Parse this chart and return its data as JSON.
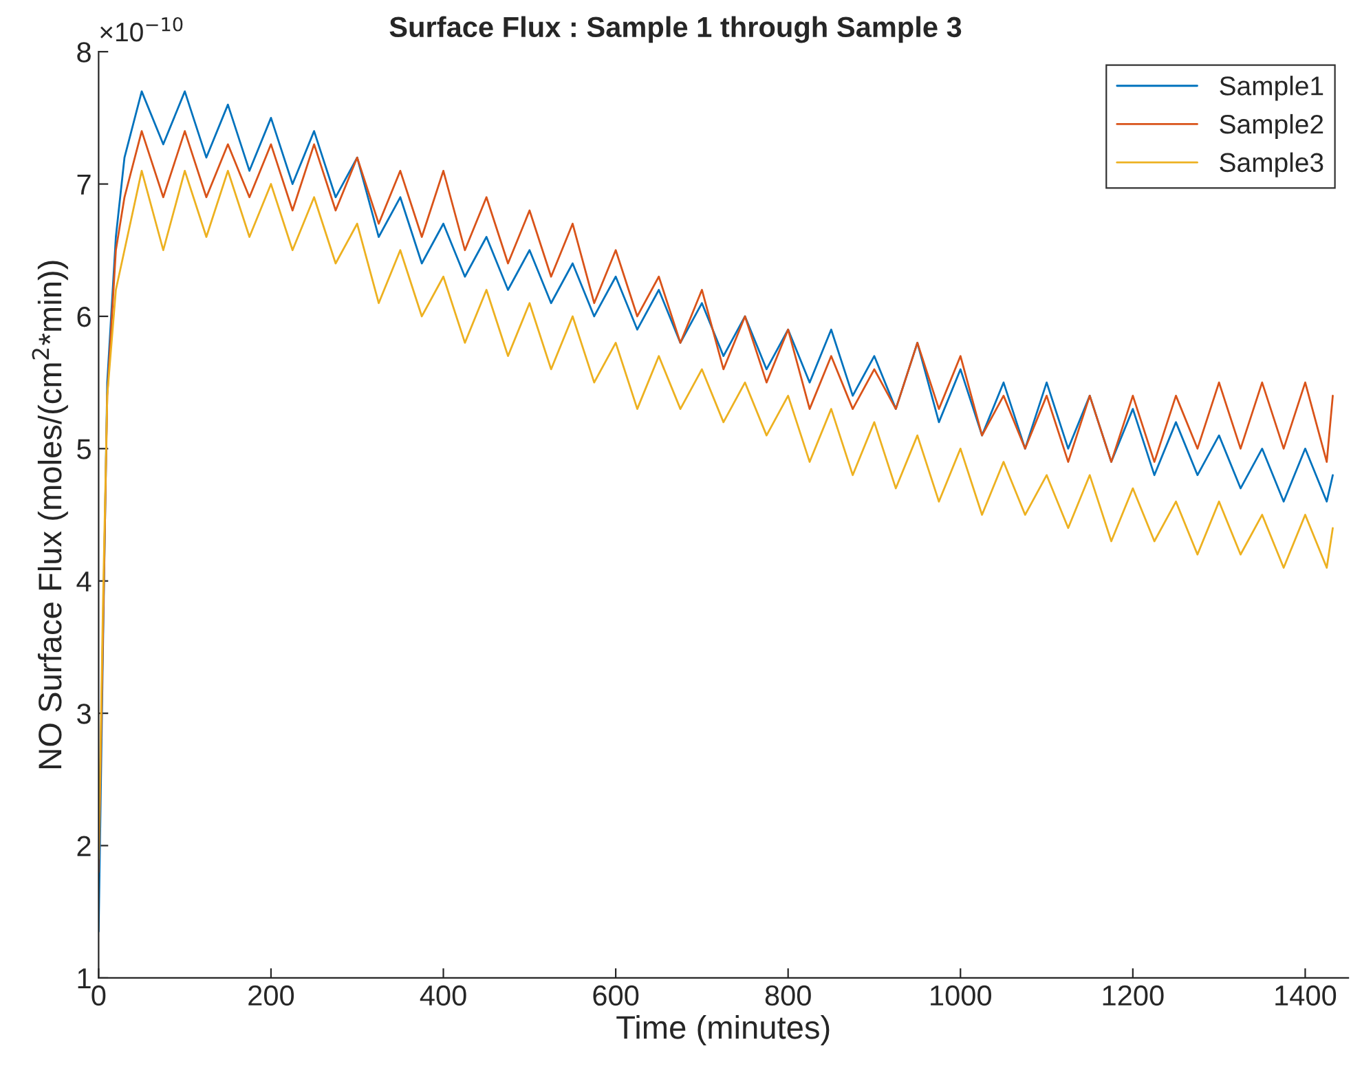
{
  "chart_data": {
    "type": "line",
    "title": "Surface Flux : Sample 1 through Sample 3",
    "xlabel": "Time (minutes)",
    "ylabel": "NO Surface Flux (moles/(cm$^{2}$*min))",
    "annotations": [
      "×10$^{−10}$"
    ],
    "x": [
      0,
      5,
      10,
      20,
      30,
      50,
      75,
      100,
      125,
      150,
      175,
      200,
      225,
      250,
      275,
      300,
      325,
      350,
      375,
      400,
      425,
      450,
      475,
      500,
      525,
      550,
      575,
      600,
      625,
      650,
      675,
      700,
      725,
      750,
      775,
      800,
      825,
      850,
      875,
      900,
      925,
      950,
      975,
      1000,
      1025,
      1050,
      1075,
      1100,
      1125,
      1150,
      1175,
      1200,
      1225,
      1250,
      1275,
      1300,
      1325,
      1350,
      1375,
      1400,
      1425,
      1432
    ],
    "series": [
      {
        "name": "Sample1",
        "color": "#0072bd",
        "values": [
          1.35,
          3.5,
          5.5,
          6.6,
          7.2,
          7.7,
          7.3,
          7.7,
          7.2,
          7.6,
          7.1,
          7.5,
          7.0,
          7.4,
          6.9,
          7.2,
          6.6,
          6.9,
          6.4,
          6.7,
          6.3,
          6.6,
          6.2,
          6.5,
          6.1,
          6.4,
          6.0,
          6.3,
          5.9,
          6.2,
          5.8,
          6.1,
          5.7,
          6.0,
          5.6,
          5.9,
          5.5,
          5.9,
          5.4,
          5.7,
          5.3,
          5.8,
          5.2,
          5.6,
          5.1,
          5.5,
          5.0,
          5.5,
          5.0,
          5.4,
          4.9,
          5.3,
          4.8,
          5.2,
          4.8,
          5.1,
          4.7,
          5.0,
          4.6,
          5.0,
          4.6,
          4.8
        ]
      },
      {
        "name": "Sample2",
        "color": "#d95319",
        "values": [
          1.8,
          3.6,
          5.4,
          6.5,
          6.9,
          7.4,
          6.9,
          7.4,
          6.9,
          7.3,
          6.9,
          7.3,
          6.8,
          7.3,
          6.8,
          7.2,
          6.7,
          7.1,
          6.6,
          7.1,
          6.5,
          6.9,
          6.4,
          6.8,
          6.3,
          6.7,
          6.1,
          6.5,
          6.0,
          6.3,
          5.8,
          6.2,
          5.6,
          6.0,
          5.5,
          5.9,
          5.3,
          5.7,
          5.3,
          5.6,
          5.3,
          5.8,
          5.3,
          5.7,
          5.1,
          5.4,
          5.0,
          5.4,
          4.9,
          5.4,
          4.9,
          5.4,
          4.9,
          5.4,
          5.0,
          5.5,
          5.0,
          5.5,
          5.0,
          5.5,
          4.9,
          5.4
        ]
      },
      {
        "name": "Sample3",
        "color": "#edb120",
        "values": [
          1.9,
          3.8,
          5.4,
          6.2,
          6.5,
          7.1,
          6.5,
          7.1,
          6.6,
          7.1,
          6.6,
          7.0,
          6.5,
          6.9,
          6.4,
          6.7,
          6.1,
          6.5,
          6.0,
          6.3,
          5.8,
          6.2,
          5.7,
          6.1,
          5.6,
          6.0,
          5.5,
          5.8,
          5.3,
          5.7,
          5.3,
          5.6,
          5.2,
          5.5,
          5.1,
          5.4,
          4.9,
          5.3,
          4.8,
          5.2,
          4.7,
          5.1,
          4.6,
          5.0,
          4.5,
          4.9,
          4.5,
          4.8,
          4.4,
          4.8,
          4.3,
          4.7,
          4.3,
          4.6,
          4.2,
          4.6,
          4.2,
          4.5,
          4.1,
          4.5,
          4.1,
          4.4
        ]
      }
    ],
    "xlim": [
      0,
      1450
    ],
    "ylim": [
      1,
      8
    ],
    "xticks": [
      0,
      200,
      400,
      600,
      800,
      1000,
      1200,
      1400
    ],
    "yticks": [
      1,
      2,
      3,
      4,
      5,
      6,
      7,
      8
    ],
    "grid": false,
    "legend": "top right",
    "marker": "none",
    "line_style": "solid"
  }
}
